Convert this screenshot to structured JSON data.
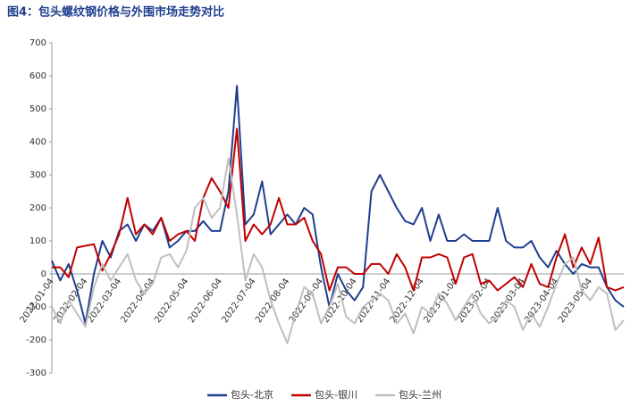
{
  "chart_data": {
    "type": "line",
    "title": "图4：包头螺纹钢价格与外围市场走势对比",
    "categories": [
      "2022-01-04",
      null,
      null,
      null,
      "2022-02-04",
      null,
      null,
      null,
      "2022-03-04",
      null,
      null,
      null,
      "2022-04-04",
      null,
      null,
      null,
      "2022-05-04",
      null,
      null,
      null,
      "2022-06-04",
      null,
      null,
      null,
      "2022-07-04",
      null,
      null,
      null,
      "2022-08-04",
      null,
      null,
      null,
      "2022-09-04",
      null,
      null,
      null,
      "2022-10-04",
      null,
      null,
      null,
      "2022-11-04",
      null,
      null,
      null,
      "2022-12-04",
      null,
      null,
      null,
      "2023-01-04",
      null,
      null,
      null,
      "2023-02-04",
      null,
      null,
      null,
      "2023-03-04",
      null,
      null,
      null,
      "2023-04-04",
      null,
      null,
      null,
      "2023-05-04",
      null,
      null,
      null,
      null
    ],
    "series": [
      {
        "name": "包头-北京",
        "color": "#1f3f8f",
        "values": [
          40,
          -20,
          30,
          -50,
          -150,
          0,
          100,
          50,
          130,
          150,
          100,
          150,
          130,
          170,
          80,
          100,
          130,
          130,
          160,
          130,
          130,
          250,
          570,
          150,
          180,
          280,
          120,
          150,
          180,
          150,
          200,
          180,
          20,
          -100,
          0,
          -50,
          -80,
          -40,
          250,
          300,
          250,
          200,
          160,
          150,
          200,
          100,
          180,
          100,
          100,
          120,
          100,
          100,
          100,
          200,
          100,
          80,
          80,
          100,
          50,
          20,
          70,
          30,
          0,
          30,
          20,
          20,
          -40,
          -80,
          -100
        ]
      },
      {
        "name": "包头-银川",
        "color": "#c00000",
        "values": [
          20,
          20,
          -10,
          80,
          85,
          90,
          10,
          60,
          120,
          230,
          120,
          150,
          120,
          170,
          100,
          120,
          130,
          100,
          230,
          290,
          250,
          200,
          440,
          100,
          150,
          120,
          150,
          230,
          150,
          150,
          170,
          100,
          60,
          -50,
          20,
          20,
          0,
          0,
          30,
          30,
          0,
          60,
          20,
          -50,
          50,
          50,
          60,
          50,
          -30,
          50,
          60,
          -30,
          -20,
          -50,
          -30,
          -10,
          -40,
          30,
          -30,
          -40,
          50,
          120,
          20,
          80,
          30,
          110,
          -40,
          -50,
          -40
        ]
      },
      {
        "name": "包头-兰州",
        "color": "#bfbfbf",
        "values": [
          -100,
          -150,
          -80,
          -120,
          -160,
          -40,
          30,
          -20,
          20,
          60,
          -20,
          -60,
          -30,
          50,
          60,
          20,
          70,
          200,
          230,
          170,
          200,
          350,
          180,
          -20,
          60,
          20,
          -80,
          -150,
          -210,
          -120,
          -40,
          -60,
          -150,
          -100,
          -30,
          -130,
          -150,
          -100,
          -80,
          -60,
          -80,
          -150,
          -120,
          -180,
          -100,
          -120,
          -60,
          -90,
          -140,
          -100,
          -60,
          -120,
          -150,
          -130,
          -80,
          -100,
          -170,
          -120,
          -160,
          -100,
          -30,
          30,
          50,
          -50,
          -80,
          -40,
          -60,
          -170,
          -140
        ]
      }
    ],
    "ylim": [
      -300,
      700
    ],
    "yticks": [
      -300,
      -200,
      -100,
      0,
      100,
      200,
      300,
      400,
      500,
      600,
      700
    ]
  }
}
